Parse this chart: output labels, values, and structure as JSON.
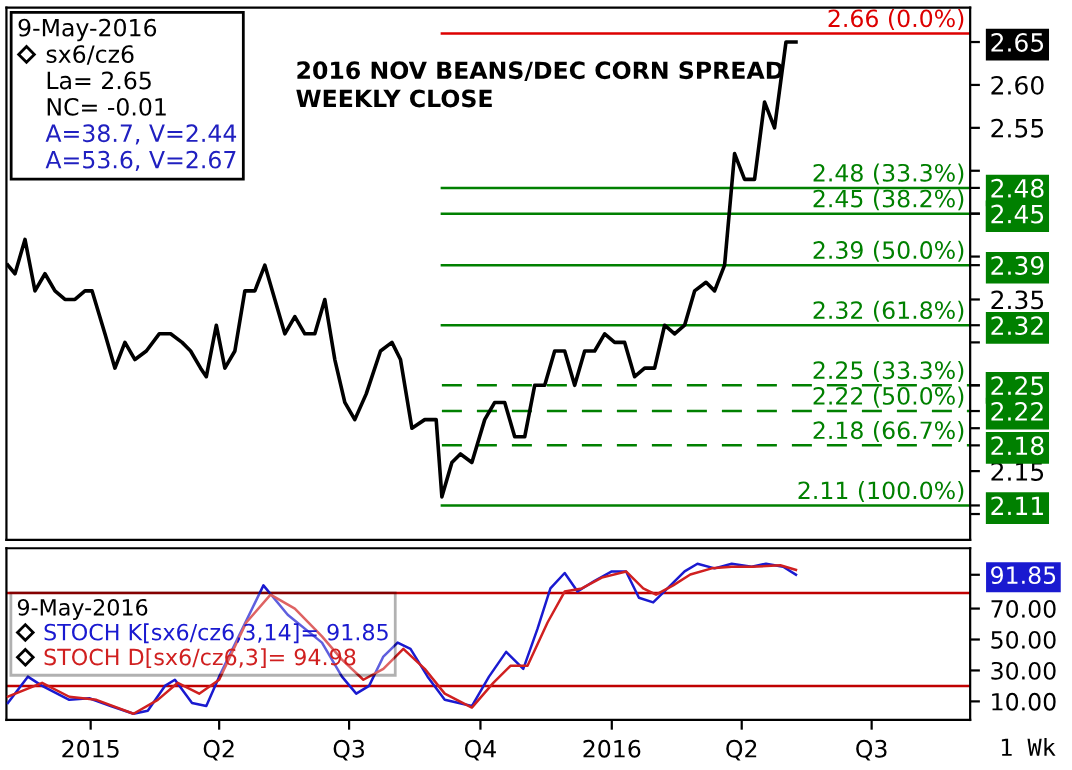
{
  "chart_data": [
    {
      "type": "line",
      "title": "2016 NOV BEANS/DEC CORN SPREAD\nWEEKLY CLOSE",
      "legend_title": "9-May-2016",
      "legend": "top left",
      "tick_labels": "y",
      "annotations": [
        "La= 2.65",
        "NC= -0.01",
        "A=38.7, V=2.44",
        "A=53.6, V=2.67"
      ],
      "series": [
        {
          "name": "sx6/cz6",
          "color": "#000000",
          "x": [
            "2014-11-04",
            "2014-11-09",
            "2014-11-16",
            "2014-11-23",
            "2014-11-30",
            "2014-12-07",
            "2014-12-14",
            "2014-12-21",
            "2014-12-28",
            "2015-01-02",
            "2015-01-11",
            "2015-01-18",
            "2015-01-25",
            "2015-02-01",
            "2015-02-09",
            "2015-02-18",
            "2015-02-26",
            "2015-03-06",
            "2015-03-12",
            "2015-03-19",
            "2015-03-23",
            "2015-03-30",
            "2015-04-05",
            "2015-04-12",
            "2015-04-19",
            "2015-04-26",
            "2015-05-03",
            "2015-05-10",
            "2015-05-17",
            "2015-05-24",
            "2015-05-31",
            "2015-06-07",
            "2015-06-14",
            "2015-06-21",
            "2015-06-28",
            "2015-07-05",
            "2015-07-13",
            "2015-07-23",
            "2015-07-31",
            "2015-08-06",
            "2015-08-14",
            "2015-08-23",
            "2015-08-31",
            "2015-09-04",
            "2015-09-11",
            "2015-09-17",
            "2015-09-25",
            "2015-10-04",
            "2015-10-11",
            "2015-10-18",
            "2015-10-25",
            "2015-11-01",
            "2015-11-08",
            "2015-11-15",
            "2015-11-22",
            "2015-11-29",
            "2015-12-06",
            "2015-12-13",
            "2015-12-20",
            "2015-12-27",
            "2016-01-03",
            "2016-01-10",
            "2016-01-17",
            "2016-01-24",
            "2016-01-31",
            "2016-02-07",
            "2016-02-14",
            "2016-02-21",
            "2016-02-28",
            "2016-03-07",
            "2016-03-13",
            "2016-03-20",
            "2016-03-27",
            "2016-04-03",
            "2016-04-10",
            "2016-04-17",
            "2016-04-24",
            "2016-05-02",
            "2016-05-09"
          ],
          "values": [
            2.39,
            2.38,
            2.42,
            2.36,
            2.38,
            2.36,
            2.35,
            2.35,
            2.36,
            2.36,
            2.31,
            2.27,
            2.3,
            2.28,
            2.29,
            2.31,
            2.31,
            2.3,
            2.29,
            2.27,
            2.26,
            2.32,
            2.27,
            2.29,
            2.36,
            2.36,
            2.39,
            2.35,
            2.31,
            2.33,
            2.31,
            2.31,
            2.35,
            2.28,
            2.23,
            2.21,
            2.24,
            2.29,
            2.3,
            2.28,
            2.2,
            2.21,
            2.21,
            2.12,
            2.16,
            2.17,
            2.16,
            2.21,
            2.23,
            2.23,
            2.19,
            2.19,
            2.25,
            2.25,
            2.29,
            2.29,
            2.25,
            2.29,
            2.29,
            2.31,
            2.3,
            2.3,
            2.26,
            2.27,
            2.27,
            2.32,
            2.31,
            2.32,
            2.36,
            2.37,
            2.36,
            2.39,
            2.52,
            2.49,
            2.49,
            2.58,
            2.55,
            2.65,
            2.65
          ]
        }
      ],
      "ref_lines": [
        {
          "axis": "y",
          "value": 2.66,
          "label": "2.66 (0.0%)",
          "color": "#dd0000",
          "line_style": "solid"
        },
        {
          "axis": "y",
          "value": 2.48,
          "label": "2.48 (33.3%)",
          "color": "#008000",
          "line_style": "solid"
        },
        {
          "axis": "y",
          "value": 2.45,
          "label": "2.45 (38.2%)",
          "color": "#008000",
          "line_style": "solid"
        },
        {
          "axis": "y",
          "value": 2.39,
          "label": "2.39 (50.0%)",
          "color": "#008000",
          "line_style": "solid"
        },
        {
          "axis": "y",
          "value": 2.32,
          "label": "2.32 (61.8%)",
          "color": "#008000",
          "line_style": "solid"
        },
        {
          "axis": "y",
          "value": 2.25,
          "label": "2.25 (33.3%)",
          "color": "#008000",
          "line_style": "dashed"
        },
        {
          "axis": "y",
          "value": 2.22,
          "label": "2.22 (50.0%)",
          "color": "#008000",
          "line_style": "dashed"
        },
        {
          "axis": "y",
          "value": 2.18,
          "label": "2.18 (66.7%)",
          "color": "#008000",
          "line_style": "dashed"
        },
        {
          "axis": "y",
          "value": 2.11,
          "label": "2.11 (100.0%)",
          "color": "#008000",
          "line_style": "solid"
        }
      ],
      "xlim": [
        "2014-11-03",
        "2016-09-08"
      ],
      "ylim": [
        2.07,
        2.69
      ],
      "yticks": [
        {
          "value": 2.1,
          "label": null
        },
        {
          "value": 2.15,
          "label": "2.15"
        },
        {
          "value": 2.2,
          "label": null
        },
        {
          "value": 2.25,
          "label": null
        },
        {
          "value": 2.3,
          "label": null
        },
        {
          "value": 2.35,
          "label": "2.35"
        },
        {
          "value": 2.4,
          "label": null
        },
        {
          "value": 2.45,
          "label": null
        },
        {
          "value": 2.5,
          "label": null
        },
        {
          "value": 2.55,
          "label": "2.55"
        },
        {
          "value": 2.6,
          "label": "2.60"
        },
        {
          "value": 2.65,
          "label": "2.65"
        },
        {
          "value": 2.48,
          "label": "2.48"
        },
        {
          "value": 2.45,
          "label": "2.45"
        },
        {
          "value": 2.39,
          "label": "2.39"
        },
        {
          "value": 2.32,
          "label": "2.32"
        },
        {
          "value": 2.25,
          "label": "2.25"
        },
        {
          "value": 2.22,
          "label": "2.22"
        },
        {
          "value": 2.18,
          "label": "2.18"
        },
        {
          "value": 2.11,
          "label": "2.11"
        }
      ]
    },
    {
      "type": "line",
      "legend_title": "9-May-2016",
      "legend": "left",
      "annotations": [
        "1 Wk"
      ],
      "series": [
        {
          "name": "STOCH K[sx6/cz6,3,14]= 91.85",
          "color": "#1a1ad0",
          "x": [
            "2014-11-04",
            "2014-11-18",
            "2014-11-28",
            "2014-12-17",
            "2014-12-31",
            "2015-01-15",
            "2015-01-31",
            "2015-02-10",
            "2015-02-22",
            "2015-03-01",
            "2015-03-13",
            "2015-03-23",
            "2015-04-01",
            "2015-05-02",
            "2015-05-19",
            "2015-06-12",
            "2015-06-26",
            "2015-07-06",
            "2015-07-15",
            "2015-07-25",
            "2015-08-04",
            "2015-08-13",
            "2015-08-25",
            "2015-09-06",
            "2015-09-25",
            "2015-10-07",
            "2015-10-19",
            "2015-10-31",
            "2015-11-10",
            "2015-11-19",
            "2015-11-29",
            "2015-12-08",
            "2015-12-20",
            "2016-01-01",
            "2016-01-11",
            "2016-01-20",
            "2016-01-30",
            "2016-02-09",
            "2016-02-21",
            "2016-03-01",
            "2016-03-13",
            "2016-03-25",
            "2016-04-08",
            "2016-04-18",
            "2016-04-30",
            "2016-05-09"
          ],
          "values": [
            9,
            26,
            20,
            11,
            12,
            7,
            2,
            4,
            20,
            24,
            9,
            7,
            26,
            85,
            66,
            48,
            26,
            15,
            20,
            39,
            48,
            44,
            26,
            11,
            7,
            26,
            42,
            31,
            57,
            83,
            93,
            81,
            88,
            94,
            94,
            77,
            74,
            83,
            94,
            99,
            96,
            99,
            97,
            99,
            97,
            91.85
          ]
        },
        {
          "name": "STOCH D[sx6/cz6,3]= 94.98",
          "color": "#d02020",
          "x": [
            "2014-11-04",
            "2014-11-28",
            "2014-12-17",
            "2015-01-05",
            "2015-01-31",
            "2015-02-17",
            "2015-03-03",
            "2015-03-18",
            "2015-04-01",
            "2015-04-20",
            "2015-05-07",
            "2015-05-24",
            "2015-06-12",
            "2015-06-26",
            "2015-07-11",
            "2015-07-25",
            "2015-08-08",
            "2015-08-23",
            "2015-09-06",
            "2015-09-25",
            "2015-10-10",
            "2015-10-22",
            "2015-11-03",
            "2015-11-17",
            "2015-11-29",
            "2015-12-11",
            "2015-12-25",
            "2016-01-11",
            "2016-01-23",
            "2016-02-01",
            "2016-02-13",
            "2016-02-25",
            "2016-03-11",
            "2016-03-25",
            "2016-04-08",
            "2016-04-28",
            "2016-05-09"
          ],
          "values": [
            13,
            22,
            13,
            11,
            2,
            11,
            22,
            15,
            24,
            61,
            79,
            70,
            52,
            37,
            24,
            31,
            44,
            31,
            15,
            6,
            22,
            33,
            33,
            61,
            81,
            83,
            90,
            94,
            83,
            79,
            85,
            92,
            96,
            97,
            97,
            98,
            94.98
          ]
        }
      ],
      "ref_lines": [
        {
          "axis": "y",
          "value": 80,
          "color": "#c00000"
        },
        {
          "axis": "y",
          "value": 20,
          "color": "#c00000"
        }
      ],
      "xlim": [
        "2014-11-03",
        "2016-09-08"
      ],
      "ylim": [
        -2,
        109
      ],
      "xticks": [
        {
          "value": "2015-01-01",
          "label": "2015"
        },
        {
          "value": "2015-04-01",
          "label": "Q2"
        },
        {
          "value": "2015-07-01",
          "label": "Q3"
        },
        {
          "value": "2015-10-01",
          "label": "Q4"
        },
        {
          "value": "2016-01-01",
          "label": "2016"
        },
        {
          "value": "2016-04-01",
          "label": "Q2"
        },
        {
          "value": "2016-07-01",
          "label": "Q3"
        }
      ],
      "yticks": [
        {
          "value": 10,
          "label": "10.00"
        },
        {
          "value": 30,
          "label": "30.00"
        },
        {
          "value": 50,
          "label": "50.00"
        },
        {
          "value": 70,
          "label": "70.00"
        },
        {
          "value": 91.85,
          "label": "91.85"
        }
      ]
    }
  ]
}
